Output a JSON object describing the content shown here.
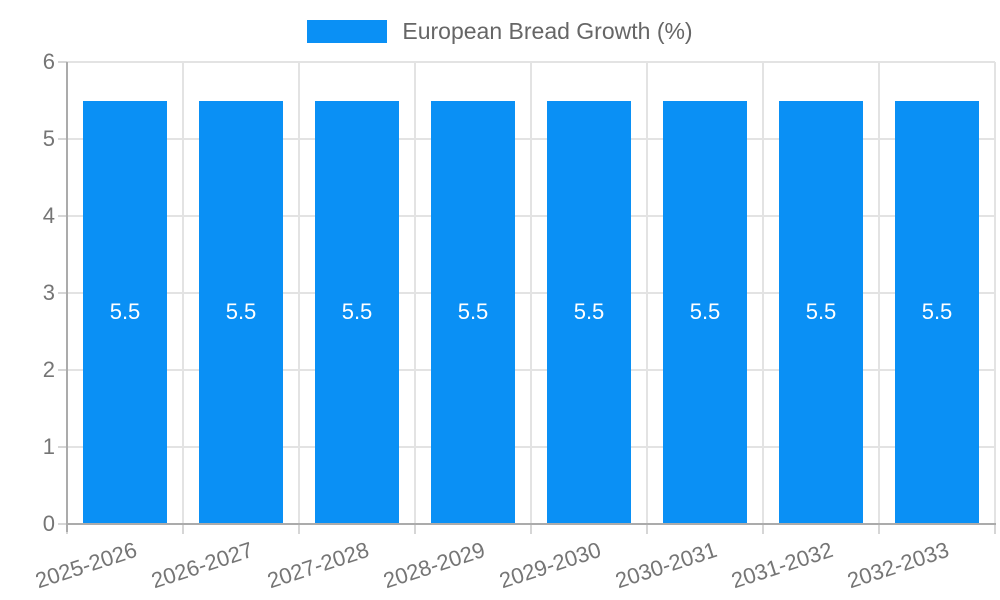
{
  "legend": {
    "label": "European Bread Growth (%)"
  },
  "chart_data": {
    "type": "bar",
    "title": "",
    "legend_entries": [
      "European Bread Growth (%)"
    ],
    "categories": [
      "2025-2026",
      "2026-2027",
      "2027-2028",
      "2028-2029",
      "2029-2030",
      "2030-2031",
      "2031-2032",
      "2032-2033"
    ],
    "series": [
      {
        "name": "European Bread Growth (%)",
        "values": [
          5.5,
          5.5,
          5.5,
          5.5,
          5.5,
          5.5,
          5.5,
          5.5
        ]
      }
    ],
    "value_labels": [
      "5.5",
      "5.5",
      "5.5",
      "5.5",
      "5.5",
      "5.5",
      "5.5",
      "5.5"
    ],
    "xlabel": "",
    "ylabel": "",
    "ylim": [
      0,
      6
    ],
    "yticks": [
      0,
      1,
      2,
      3,
      4,
      5,
      6
    ],
    "grid": true,
    "legend_position": "top",
    "colors": {
      "bar": "#0a90f5",
      "grid": "#e3e3e3",
      "axis": "#ababab",
      "tick": "#d6d6d6",
      "label": "#757575",
      "value_label": "#ffffff"
    }
  }
}
